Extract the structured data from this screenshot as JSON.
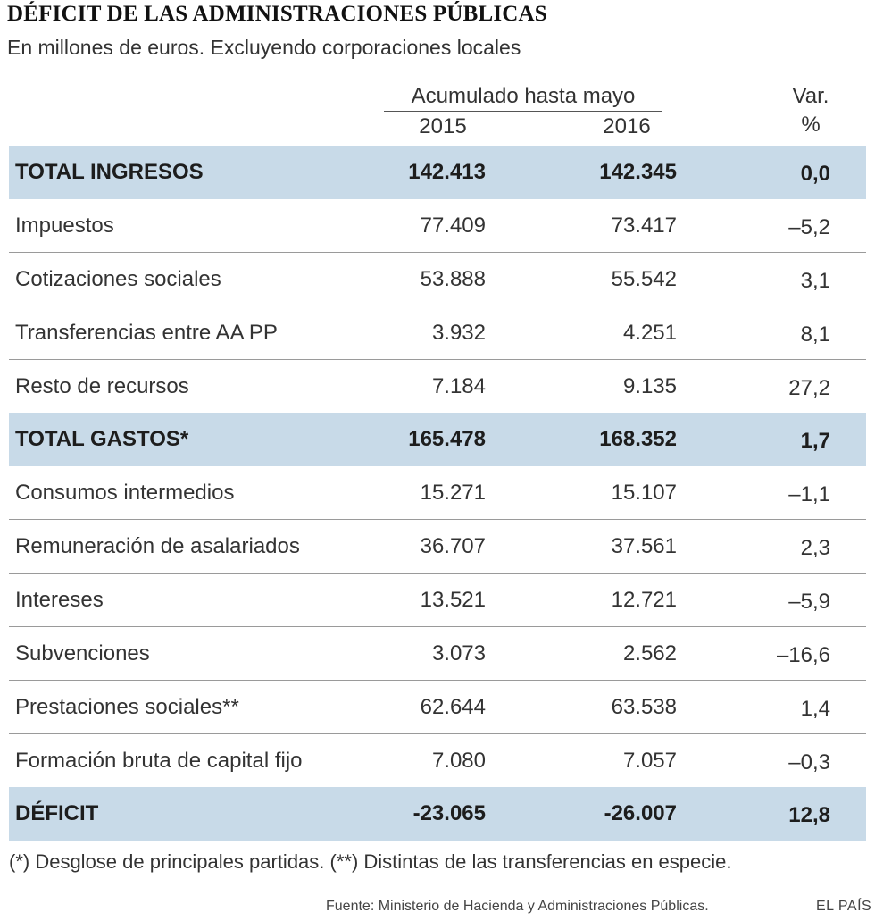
{
  "title": "DÉFICIT DE LAS ADMINISTRACIONES PÚBLICAS",
  "subtitle": "En millones de euros. Excluyendo corporaciones locales",
  "header": {
    "accumulated": "Acumulado hasta mayo",
    "year1": "2015",
    "year2": "2016",
    "var_line1": "Var.",
    "var_line2": "%"
  },
  "rows": [
    {
      "label": "TOTAL INGRESOS",
      "v2015": "142.413",
      "v2016": "142.345",
      "var": "0,0",
      "highlight": true
    },
    {
      "label": "Impuestos",
      "v2015": "77.409",
      "v2016": "73.417",
      "var": "–5,2"
    },
    {
      "label": "Cotizaciones sociales",
      "v2015": "53.888",
      "v2016": "55.542",
      "var": "3,1"
    },
    {
      "label": "Transferencias entre AA PP",
      "v2015": "3.932",
      "v2016": "4.251",
      "var": "8,1"
    },
    {
      "label": "Resto de recursos",
      "v2015": "7.184",
      "v2016": "9.135",
      "var": "27,2"
    },
    {
      "label": "TOTAL GASTOS*",
      "v2015": "165.478",
      "v2016": "168.352",
      "var": "1,7",
      "highlight": true
    },
    {
      "label": "Consumos intermedios",
      "v2015": "15.271",
      "v2016": "15.107",
      "var": "–1,1"
    },
    {
      "label": "Remuneración de asalariados",
      "v2015": "36.707",
      "v2016": "37.561",
      "var": "2,3"
    },
    {
      "label": "Intereses",
      "v2015": "13.521",
      "v2016": "12.721",
      "var": "–5,9"
    },
    {
      "label": "Subvenciones",
      "v2015": "3.073",
      "v2016": "2.562",
      "var": "–16,6"
    },
    {
      "label": "Prestaciones sociales**",
      "v2015": "62.644",
      "v2016": "63.538",
      "var": "1,4"
    },
    {
      "label": "Formación bruta de capital fijo",
      "v2015": "7.080",
      "v2016": "7.057",
      "var": "–0,3"
    },
    {
      "label": "DÉFICIT",
      "v2015": "-23.065",
      "v2016": "-26.007",
      "var": "12,8",
      "highlight": true
    }
  ],
  "footnote": "(*) Desglose de principales partidas. (**) Distintas de las transferencias en especie.",
  "source": "Fuente: Ministerio de Hacienda y Administraciones Públicas.",
  "brand": "EL PAÍS",
  "colors": {
    "highlight_row": "#c8dae8",
    "text": "#333333"
  }
}
